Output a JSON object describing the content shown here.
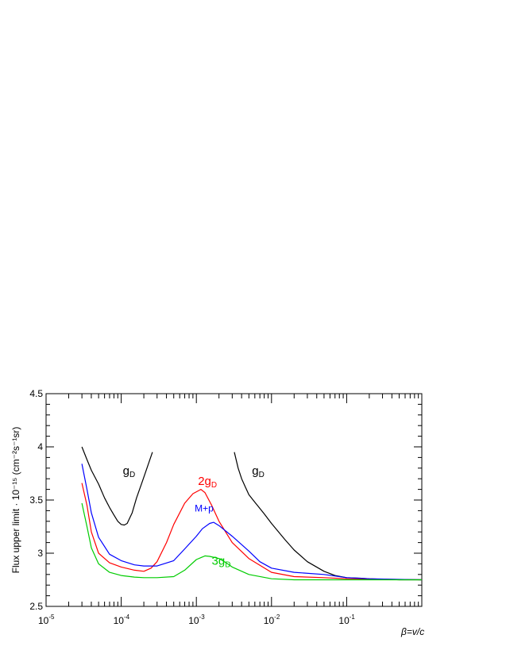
{
  "chart_data": {
    "type": "line",
    "title": "",
    "xlabel": "β=v/c",
    "ylabel": "Flux upper limit · 10⁻¹⁵ (cm⁻²s⁻¹sr)",
    "x_scale": "log",
    "xlim": [
      1e-05,
      1
    ],
    "ylim": [
      2.5,
      4.5
    ],
    "grid": false,
    "y_ticks": [
      {
        "value": 2.5,
        "label": "2.5"
      },
      {
        "value": 3,
        "label": "3"
      },
      {
        "value": 3.5,
        "label": "3.5"
      },
      {
        "value": 4,
        "label": "4"
      },
      {
        "value": 4.5,
        "label": "4.5"
      }
    ],
    "x_ticks": [
      {
        "value": 1e-05,
        "base": "10",
        "exp": "-5"
      },
      {
        "value": 0.0001,
        "base": "10",
        "exp": "-4"
      },
      {
        "value": 0.001,
        "base": "10",
        "exp": "-3"
      },
      {
        "value": 0.01,
        "base": "10",
        "exp": "-2"
      },
      {
        "value": 0.1,
        "base": "10",
        "exp": "-1"
      }
    ],
    "series": [
      {
        "color": "#000000",
        "x": [
          3e-05,
          3.5e-05,
          4e-05,
          5e-05,
          6e-05,
          7e-05,
          8e-05,
          9e-05,
          0.0001,
          0.00011,
          0.00012,
          0.00014,
          0.00016,
          0.00019,
          0.00022,
          0.00026
        ],
        "y": [
          4.0,
          3.88,
          3.78,
          3.65,
          3.52,
          3.43,
          3.36,
          3.3,
          3.27,
          3.265,
          3.28,
          3.38,
          3.52,
          3.67,
          3.8,
          3.95
        ]
      },
      {
        "color": "#000000",
        "x": [
          0.0032,
          0.0036,
          0.004,
          0.0045,
          0.005,
          0.006,
          0.008,
          0.01,
          0.015,
          0.02,
          0.03,
          0.05,
          0.07,
          0.1,
          0.15,
          0.2,
          0.3,
          0.5,
          1.0
        ],
        "y": [
          3.95,
          3.8,
          3.7,
          3.62,
          3.55,
          3.48,
          3.37,
          3.28,
          3.13,
          3.03,
          2.92,
          2.83,
          2.79,
          2.77,
          2.765,
          2.76,
          2.755,
          2.75,
          2.75
        ]
      },
      {
        "color": "#ff0000",
        "x": [
          3e-05,
          3.5e-05,
          4e-05,
          5e-05,
          7e-05,
          0.0001,
          0.00015,
          0.0002,
          0.00025,
          0.0003,
          0.0004,
          0.0005,
          0.0007,
          0.0009,
          0.00115,
          0.0013,
          0.0016,
          0.002,
          0.003,
          0.005,
          0.01,
          0.02,
          0.05,
          0.1,
          1.0
        ],
        "y": [
          3.66,
          3.45,
          3.2,
          3.0,
          2.91,
          2.87,
          2.84,
          2.83,
          2.86,
          2.92,
          3.1,
          3.27,
          3.47,
          3.56,
          3.6,
          3.57,
          3.45,
          3.3,
          3.1,
          2.95,
          2.82,
          2.78,
          2.77,
          2.76,
          2.75
        ]
      },
      {
        "color": "#0000ff",
        "x": [
          3e-05,
          3.5e-05,
          4e-05,
          5e-05,
          7e-05,
          0.0001,
          0.00015,
          0.0002,
          0.0003,
          0.0005,
          0.0007,
          0.001,
          0.0012,
          0.0015,
          0.0017,
          0.002,
          0.003,
          0.005,
          0.007,
          0.01,
          0.02,
          0.05,
          0.1,
          0.2,
          1.0
        ],
        "y": [
          3.84,
          3.6,
          3.38,
          3.15,
          2.99,
          2.93,
          2.89,
          2.88,
          2.88,
          2.93,
          3.04,
          3.16,
          3.23,
          3.28,
          3.29,
          3.26,
          3.16,
          3.02,
          2.92,
          2.86,
          2.82,
          2.8,
          2.77,
          2.76,
          2.75
        ]
      },
      {
        "color": "#00cc00",
        "x": [
          3e-05,
          3.5e-05,
          4e-05,
          5e-05,
          7e-05,
          0.0001,
          0.00015,
          0.0002,
          0.0003,
          0.0005,
          0.0007,
          0.001,
          0.0013,
          0.0015,
          0.002,
          0.0025,
          0.003,
          0.005,
          0.01,
          0.02,
          0.05,
          0.1,
          1.0
        ],
        "y": [
          3.47,
          3.25,
          3.05,
          2.9,
          2.82,
          2.79,
          2.775,
          2.77,
          2.77,
          2.78,
          2.84,
          2.94,
          2.975,
          2.97,
          2.95,
          2.91,
          2.87,
          2.8,
          2.76,
          2.75,
          2.75,
          2.75,
          2.75
        ]
      }
    ],
    "annotations": [
      {
        "base": "g",
        "sub": "D",
        "prefix": "",
        "color": "#000000",
        "x": 0.000105,
        "y": 3.74
      },
      {
        "base": "g",
        "sub": "D",
        "prefix": "",
        "color": "#000000",
        "x": 0.0055,
        "y": 3.74
      },
      {
        "base": "g",
        "sub": "D",
        "prefix": "2",
        "color": "#ff0000",
        "x": 0.00105,
        "y": 3.64
      },
      {
        "text": "M+p",
        "color": "#0000ff",
        "x": 0.00095,
        "y": 3.39
      },
      {
        "base": "g",
        "sub": "D",
        "prefix": "3",
        "color": "#00cc00",
        "x": 0.0016,
        "y": 2.89
      }
    ]
  }
}
